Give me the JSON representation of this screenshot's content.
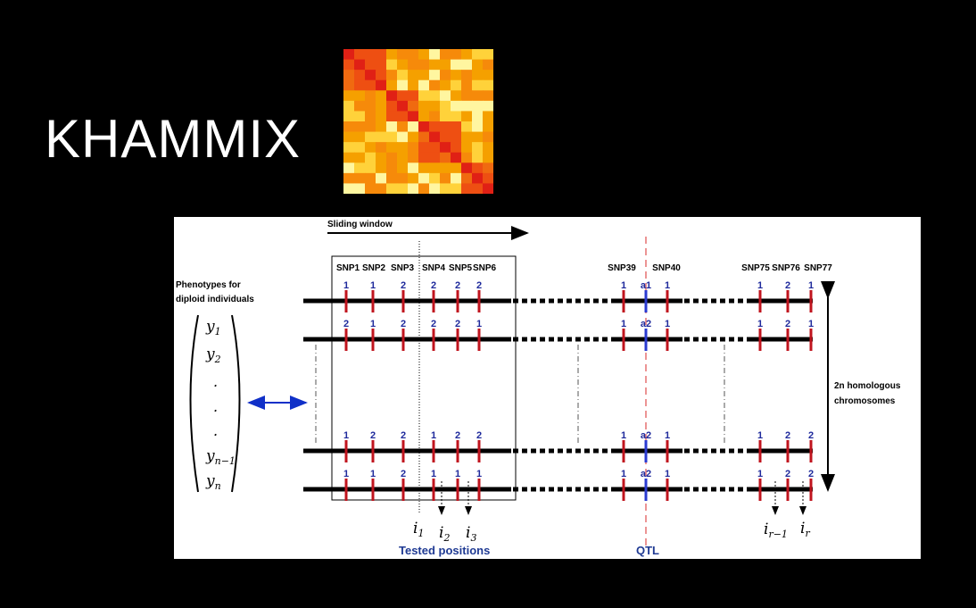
{
  "slide": {
    "title": "KHAMMIX",
    "heatmap_colors": [
      "#f5a000",
      "#f06a10",
      "#e02015",
      "#ffd23a",
      "#fff6a0",
      "#ee4f12",
      "#f68a0a"
    ],
    "heatmap_icon": "heatmap-image"
  },
  "diagram": {
    "sliding_window_label": "Sliding window",
    "phenotypes_label": [
      "Phenotypes for",
      "diploid individuals"
    ],
    "matrix_entries": [
      "y",
      "y",
      ".",
      ".",
      ".",
      "y",
      "y"
    ],
    "matrix_subscripts": [
      "1",
      "2",
      "",
      "",
      "",
      "n−1",
      "n"
    ],
    "homologous_label": [
      "2n homologous",
      "chromosomes"
    ],
    "tested_positions_label": "Tested positions",
    "qtl_label": "QTL",
    "snp_labels": [
      "SNP1",
      "SNP2",
      "SNP3",
      "SNP4",
      "SNP5",
      "SNP6",
      "SNP39",
      "SNP40",
      "SNP75",
      "SNP76",
      "SNP77"
    ],
    "position_labels": [
      {
        "base": "i",
        "sub": "1"
      },
      {
        "base": "i",
        "sub": "2"
      },
      {
        "base": "i",
        "sub": "3"
      },
      {
        "base": "i",
        "sub": "r−1"
      },
      {
        "base": "i",
        "sub": "r"
      }
    ],
    "chromosomes": [
      {
        "left": [
          "1",
          "1",
          "2",
          "2",
          "2",
          "2"
        ],
        "mid": [
          "1",
          "a1",
          "1"
        ],
        "right": [
          "1",
          "2",
          "1"
        ]
      },
      {
        "left": [
          "2",
          "1",
          "2",
          "2",
          "2",
          "1"
        ],
        "mid": [
          "1",
          "a2",
          "1"
        ],
        "right": [
          "1",
          "2",
          "1"
        ]
      },
      {
        "left": [
          "1",
          "2",
          "2",
          "1",
          "2",
          "2"
        ],
        "mid": [
          "1",
          "a2",
          "1"
        ],
        "right": [
          "1",
          "2",
          "2"
        ]
      },
      {
        "left": [
          "1",
          "1",
          "2",
          "1",
          "1",
          "1"
        ],
        "mid": [
          "1",
          "a2",
          "1"
        ],
        "right": [
          "1",
          "2",
          "2"
        ]
      }
    ],
    "colors": {
      "snp_tick": "#c0141e",
      "qtl_tick": "#2a3ad0",
      "qtl_line": "#e77a7a",
      "arrow_blue": "#1030c8",
      "text_blue": "#1f2a9c"
    }
  }
}
